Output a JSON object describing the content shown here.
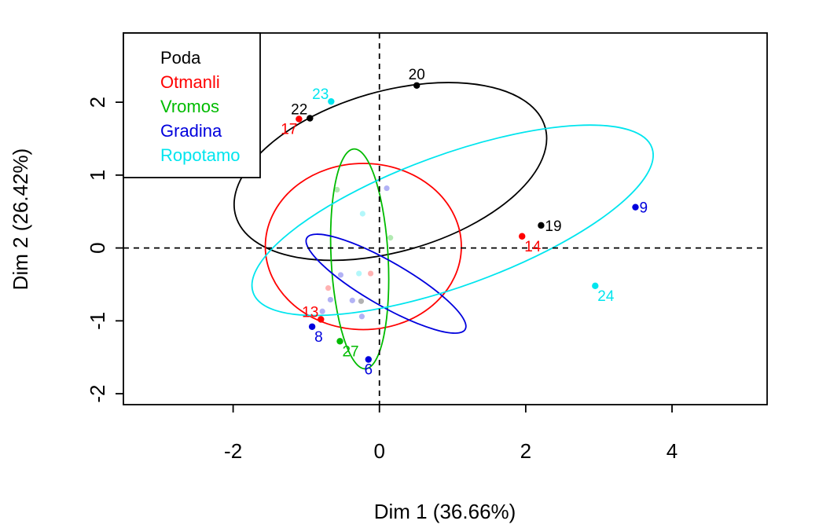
{
  "chart_data": {
    "type": "scatter",
    "title": "",
    "xlabel": "Dim 1 (36.66%)",
    "ylabel": "Dim 2 (26.42%)",
    "xlim": [
      -3.5,
      5.3
    ],
    "ylim": [
      -2.15,
      2.95
    ],
    "xticks": [
      -2,
      0,
      2,
      4
    ],
    "yticks": [
      -2,
      -1,
      0,
      1,
      2
    ],
    "grid": false,
    "reference_lines": {
      "x": 0,
      "y": 0,
      "style": "dashed"
    },
    "legend": {
      "position": "top-left",
      "entries": [
        {
          "name": "Poda",
          "color": "#000000"
        },
        {
          "name": "Otmanli",
          "color": "#ff0000"
        },
        {
          "name": "Vromos",
          "color": "#00bb00"
        },
        {
          "name": "Gradina",
          "color": "#0000dd"
        },
        {
          "name": "Ropotamo",
          "color": "#00e5ee"
        }
      ]
    },
    "labeled_points": [
      {
        "label": "20",
        "x": 0.51,
        "y": 2.23,
        "color": "#000000",
        "pos": "above"
      },
      {
        "label": "22",
        "x": -0.95,
        "y": 1.78,
        "color": "#000000",
        "pos": "above-left"
      },
      {
        "label": "19",
        "x": 2.21,
        "y": 0.31,
        "color": "#000000",
        "pos": "right"
      },
      {
        "label": "17",
        "x": -1.1,
        "y": 1.77,
        "color": "#ff0000",
        "pos": "below-left"
      },
      {
        "label": "14",
        "x": 1.95,
        "y": 0.16,
        "color": "#ff0000",
        "pos": "below-right"
      },
      {
        "label": "13",
        "x": -0.8,
        "y": -0.98,
        "color": "#ff0000",
        "pos": "left"
      },
      {
        "label": "27",
        "x": -0.54,
        "y": -1.28,
        "color": "#00bb00",
        "pos": "below-right"
      },
      {
        "label": "9",
        "x": 3.5,
        "y": 0.56,
        "color": "#0000dd",
        "pos": "right"
      },
      {
        "label": "8",
        "x": -0.92,
        "y": -1.08,
        "color": "#0000dd",
        "pos": "below-right"
      },
      {
        "label": "6",
        "x": -0.15,
        "y": -1.53,
        "color": "#0000dd",
        "pos": "below"
      },
      {
        "label": "23",
        "x": -0.66,
        "y": 2.01,
        "color": "#00e5ee",
        "pos": "left"
      },
      {
        "label": "24",
        "x": 2.95,
        "y": -0.52,
        "color": "#00e5ee",
        "pos": "below-right"
      }
    ],
    "faded_points": [
      {
        "x": -0.25,
        "y": -0.73,
        "color": "#000000"
      },
      {
        "x": -0.7,
        "y": -0.55,
        "color": "#ff0000"
      },
      {
        "x": -0.12,
        "y": -0.35,
        "color": "#ff0000"
      },
      {
        "x": -0.58,
        "y": 0.8,
        "color": "#00bb00"
      },
      {
        "x": 0.15,
        "y": 0.14,
        "color": "#00bb00"
      },
      {
        "x": -0.53,
        "y": -0.37,
        "color": "#0000dd"
      },
      {
        "x": 0.1,
        "y": 0.82,
        "color": "#0000dd"
      },
      {
        "x": -0.67,
        "y": -0.71,
        "color": "#0000dd"
      },
      {
        "x": -0.37,
        "y": -0.72,
        "color": "#0000dd"
      },
      {
        "x": -0.24,
        "y": -0.94,
        "color": "#0000dd"
      },
      {
        "x": -0.78,
        "y": -0.87,
        "color": "#0000dd"
      },
      {
        "x": -0.23,
        "y": 0.47,
        "color": "#00e5ee"
      },
      {
        "x": -0.28,
        "y": -0.35,
        "color": "#00e5ee"
      }
    ],
    "ellipses": [
      {
        "group": "Poda",
        "color": "#000000",
        "cx": 0.15,
        "cy": 1.05,
        "rx": 2.2,
        "ry": 1.1,
        "angle_deg": -16
      },
      {
        "group": "Otmanli",
        "color": "#ff0000",
        "cx": -0.22,
        "cy": 0.02,
        "rx": 1.34,
        "ry": 1.14,
        "angle_deg": 0
      },
      {
        "group": "Vromos",
        "color": "#00bb00",
        "cx": -0.27,
        "cy": -0.15,
        "rx": 0.39,
        "ry": 1.51,
        "angle_deg": -3
      },
      {
        "group": "Gradina",
        "color": "#0000dd",
        "cx": 0.09,
        "cy": -0.49,
        "rx": 1.25,
        "ry": 0.3,
        "angle_deg": 30
      },
      {
        "group": "Ropotamo",
        "color": "#00e5ee",
        "cx": 1.0,
        "cy": 0.38,
        "rx": 2.9,
        "ry": 0.9,
        "angle_deg": -20
      }
    ]
  }
}
